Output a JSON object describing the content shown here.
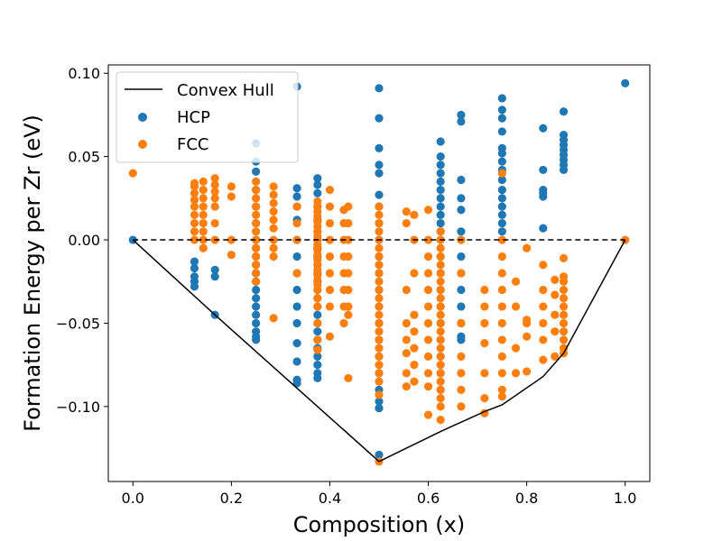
{
  "chart_data": {
    "type": "scatter",
    "title": "",
    "xlabel": "Composition (x)",
    "ylabel": "Formation Energy per Zr (eV)",
    "xlim": [
      -0.05,
      1.05
    ],
    "ylim": [
      -0.145,
      0.105
    ],
    "x_ticks": [
      0.0,
      0.2,
      0.4,
      0.6,
      0.8,
      1.0
    ],
    "x_tick_labels": [
      "0.0",
      "0.2",
      "0.4",
      "0.6",
      "0.8",
      "1.0"
    ],
    "y_ticks": [
      0.1,
      0.05,
      0.0,
      -0.05,
      -0.1
    ],
    "y_tick_labels": [
      "0.10",
      "0.05",
      "0.00",
      "−0.05",
      "−0.10"
    ],
    "grid": false,
    "legend_position": "upper-left",
    "reference_line": {
      "y": 0.0,
      "style": "dashed",
      "color": "#000000"
    },
    "convex_hull": {
      "name": "Convex Hull",
      "color": "#000000",
      "points": [
        [
          0.0,
          0.0
        ],
        [
          0.1667,
          -0.045
        ],
        [
          0.5,
          -0.133
        ],
        [
          0.625,
          -0.115
        ],
        [
          0.7143,
          -0.103
        ],
        [
          0.75,
          -0.099
        ],
        [
          0.8333,
          -0.082
        ],
        [
          0.875,
          -0.068
        ],
        [
          1.0,
          0.0
        ]
      ]
    },
    "series": [
      {
        "name": "HCP",
        "color": "#1f77b4",
        "columns": [
          {
            "x": 0.0,
            "y": [
              0.0
            ]
          },
          {
            "x": 0.125,
            "y": [
              -0.013,
              -0.017,
              -0.022,
              -0.025,
              -0.028
            ]
          },
          {
            "x": 0.1667,
            "y": [
              -0.018,
              -0.022,
              -0.045
            ]
          },
          {
            "x": 0.25,
            "y": [
              0.058,
              0.047,
              0.041,
              0.03,
              0.02,
              0.01,
              0.0,
              -0.005,
              -0.01,
              -0.015,
              -0.02,
              -0.025,
              -0.03,
              -0.035,
              -0.04,
              -0.045,
              -0.05,
              -0.055,
              -0.058,
              -0.06
            ]
          },
          {
            "x": 0.3333,
            "y": [
              0.092,
              0.031,
              0.026,
              0.02,
              0.012,
              0.0,
              -0.01,
              -0.02,
              -0.03,
              -0.04,
              -0.05,
              -0.062,
              -0.073,
              -0.084,
              -0.086
            ]
          },
          {
            "x": 0.375,
            "y": [
              0.037,
              0.033,
              0.028,
              0.02,
              0.012,
              0.005,
              0.0,
              -0.005,
              -0.01,
              -0.015,
              -0.02,
              -0.025,
              -0.03,
              -0.035,
              -0.04,
              -0.045,
              -0.05,
              -0.055,
              -0.06,
              -0.065,
              -0.07,
              -0.075,
              -0.08,
              -0.083
            ]
          },
          {
            "x": 0.5,
            "y": [
              0.091,
              0.073,
              0.055,
              0.045,
              0.04,
              0.027,
              0.02,
              0.01,
              0.0,
              -0.01,
              -0.02,
              -0.03,
              -0.04,
              -0.05,
              -0.06,
              -0.07,
              -0.08,
              -0.09,
              -0.097,
              -0.101,
              -0.129
            ]
          },
          {
            "x": 0.625,
            "y": [
              0.059,
              0.05,
              0.045,
              0.04,
              0.035,
              0.03,
              0.025,
              0.02,
              0.015,
              0.01,
              0.005,
              0.0,
              -0.01,
              -0.02,
              -0.03,
              -0.04,
              -0.05,
              -0.06,
              -0.07,
              -0.08,
              -0.09
            ]
          },
          {
            "x": 0.6667,
            "y": [
              0.075,
              0.071,
              0.036,
              0.025,
              0.018,
              0.005,
              0.0,
              -0.01,
              -0.02,
              -0.03,
              -0.04,
              -0.05,
              -0.058,
              -0.06
            ]
          },
          {
            "x": 0.75,
            "y": [
              0.085,
              0.078,
              0.073,
              0.065,
              0.055,
              0.052,
              0.047,
              0.042,
              0.036,
              0.03,
              0.025,
              0.02,
              0.015,
              0.01,
              0.005
            ]
          },
          {
            "x": 0.8333,
            "y": [
              0.067,
              0.042,
              0.03,
              0.028,
              0.026,
              0.007
            ]
          },
          {
            "x": 0.875,
            "y": [
              0.077,
              0.063,
              0.06,
              0.057,
              0.054,
              0.051,
              0.048,
              0.045,
              0.042
            ]
          },
          {
            "x": 1.0,
            "y": [
              0.094
            ]
          }
        ]
      },
      {
        "name": "FCC",
        "color": "#ff7f0e",
        "columns": [
          {
            "x": 0.0,
            "y": [
              0.04
            ]
          },
          {
            "x": 0.125,
            "y": [
              0.034,
              0.032,
              0.028,
              0.024,
              0.02,
              0.015,
              0.01,
              0.005,
              0.0
            ]
          },
          {
            "x": 0.1429,
            "y": [
              0.035,
              0.03,
              0.025,
              0.02,
              0.015,
              0.01,
              0.005,
              0.0,
              -0.005
            ]
          },
          {
            "x": 0.1667,
            "y": [
              0.037,
              0.033,
              0.029,
              0.025,
              0.02,
              0.01,
              0.0
            ]
          },
          {
            "x": 0.2,
            "y": [
              0.032,
              0.026,
              0.0,
              -0.009
            ]
          },
          {
            "x": 0.25,
            "y": [
              0.035,
              0.03,
              0.025,
              0.02,
              0.015,
              0.01,
              0.005,
              0.0,
              -0.005,
              -0.01,
              -0.015,
              -0.02,
              -0.025
            ]
          },
          {
            "x": 0.2857,
            "y": [
              0.032,
              0.027,
              0.022,
              0.017,
              0.012,
              0.007,
              0.0,
              -0.005,
              -0.01,
              -0.047
            ]
          },
          {
            "x": 0.3333,
            "y": [
              0.02,
              0.01,
              0.0,
              -0.02
            ]
          },
          {
            "x": 0.375,
            "y": [
              0.023,
              0.02,
              0.017,
              0.014,
              0.011,
              0.008,
              0.005,
              0.002,
              0.0,
              -0.003,
              -0.006,
              -0.009,
              -0.012,
              -0.015,
              -0.018,
              -0.021,
              -0.024,
              -0.027,
              -0.03,
              -0.035,
              -0.04,
              -0.05,
              -0.06,
              -0.066
            ]
          },
          {
            "x": 0.4,
            "y": [
              0.03,
              0.02,
              0.01,
              0.0,
              -0.01,
              -0.02,
              -0.03,
              -0.04,
              -0.058
            ]
          },
          {
            "x": 0.4286,
            "y": [
              0.018,
              0.01,
              0.0,
              -0.01,
              -0.02,
              -0.03,
              -0.04,
              -0.05
            ]
          },
          {
            "x": 0.4375,
            "y": [
              0.02,
              0.01,
              0.0,
              -0.01,
              -0.02,
              -0.03,
              -0.04,
              -0.045,
              -0.083
            ]
          },
          {
            "x": 0.5,
            "y": [
              0.02,
              0.015,
              0.01,
              0.005,
              0.0,
              -0.005,
              -0.01,
              -0.015,
              -0.02,
              -0.025,
              -0.03,
              -0.035,
              -0.04,
              -0.045,
              -0.05,
              -0.055,
              -0.06,
              -0.065,
              -0.07,
              -0.075,
              -0.08,
              -0.085,
              -0.093,
              -0.133
            ]
          },
          {
            "x": 0.5556,
            "y": [
              0.017,
              0.01,
              -0.03,
              -0.05,
              -0.06,
              -0.068,
              -0.08,
              -0.088
            ]
          },
          {
            "x": 0.5714,
            "y": [
              0.015,
              0.0,
              -0.02,
              -0.045,
              -0.055,
              -0.065,
              -0.075,
              -0.085
            ]
          },
          {
            "x": 0.6,
            "y": [
              0.018,
              0.0,
              -0.01,
              -0.02,
              -0.03,
              -0.04,
              -0.05,
              -0.06,
              -0.07,
              -0.08,
              -0.088,
              -0.105
            ]
          },
          {
            "x": 0.625,
            "y": [
              0.005,
              0.0,
              -0.005,
              -0.01,
              -0.015,
              -0.02,
              -0.025,
              -0.03,
              -0.035,
              -0.04,
              -0.045,
              -0.05,
              -0.055,
              -0.06,
              -0.065,
              -0.07,
              -0.075,
              -0.08,
              -0.085,
              -0.09,
              -0.095,
              -0.1,
              -0.108
            ]
          },
          {
            "x": 0.6667,
            "y": [
              0.0,
              -0.02,
              -0.05,
              -0.07,
              -0.08,
              -0.09,
              -0.1
            ]
          },
          {
            "x": 0.7143,
            "y": [
              -0.03,
              -0.04,
              -0.05,
              -0.062,
              -0.08,
              -0.095,
              -0.104
            ]
          },
          {
            "x": 0.75,
            "y": [
              0.04,
              0.0,
              -0.01,
              -0.02,
              -0.03,
              -0.04,
              -0.05,
              -0.06,
              -0.07,
              -0.08,
              -0.09,
              -0.094
            ]
          },
          {
            "x": 0.7778,
            "y": [
              -0.025,
              -0.04,
              -0.065,
              -0.08
            ]
          },
          {
            "x": 0.8,
            "y": [
              -0.005,
              -0.048,
              -0.05,
              -0.058,
              -0.079
            ]
          },
          {
            "x": 0.8333,
            "y": [
              -0.015,
              -0.03,
              -0.04,
              -0.05,
              -0.06,
              -0.072
            ]
          },
          {
            "x": 0.8571,
            "y": [
              -0.024,
              -0.033,
              -0.045,
              -0.055,
              -0.07
            ]
          },
          {
            "x": 0.875,
            "y": [
              -0.011,
              -0.022,
              -0.025,
              -0.03,
              -0.035,
              -0.04,
              -0.045,
              -0.05,
              -0.055,
              -0.06,
              -0.065,
              -0.068
            ]
          },
          {
            "x": 1.0,
            "y": [
              0.0
            ]
          }
        ]
      }
    ]
  }
}
